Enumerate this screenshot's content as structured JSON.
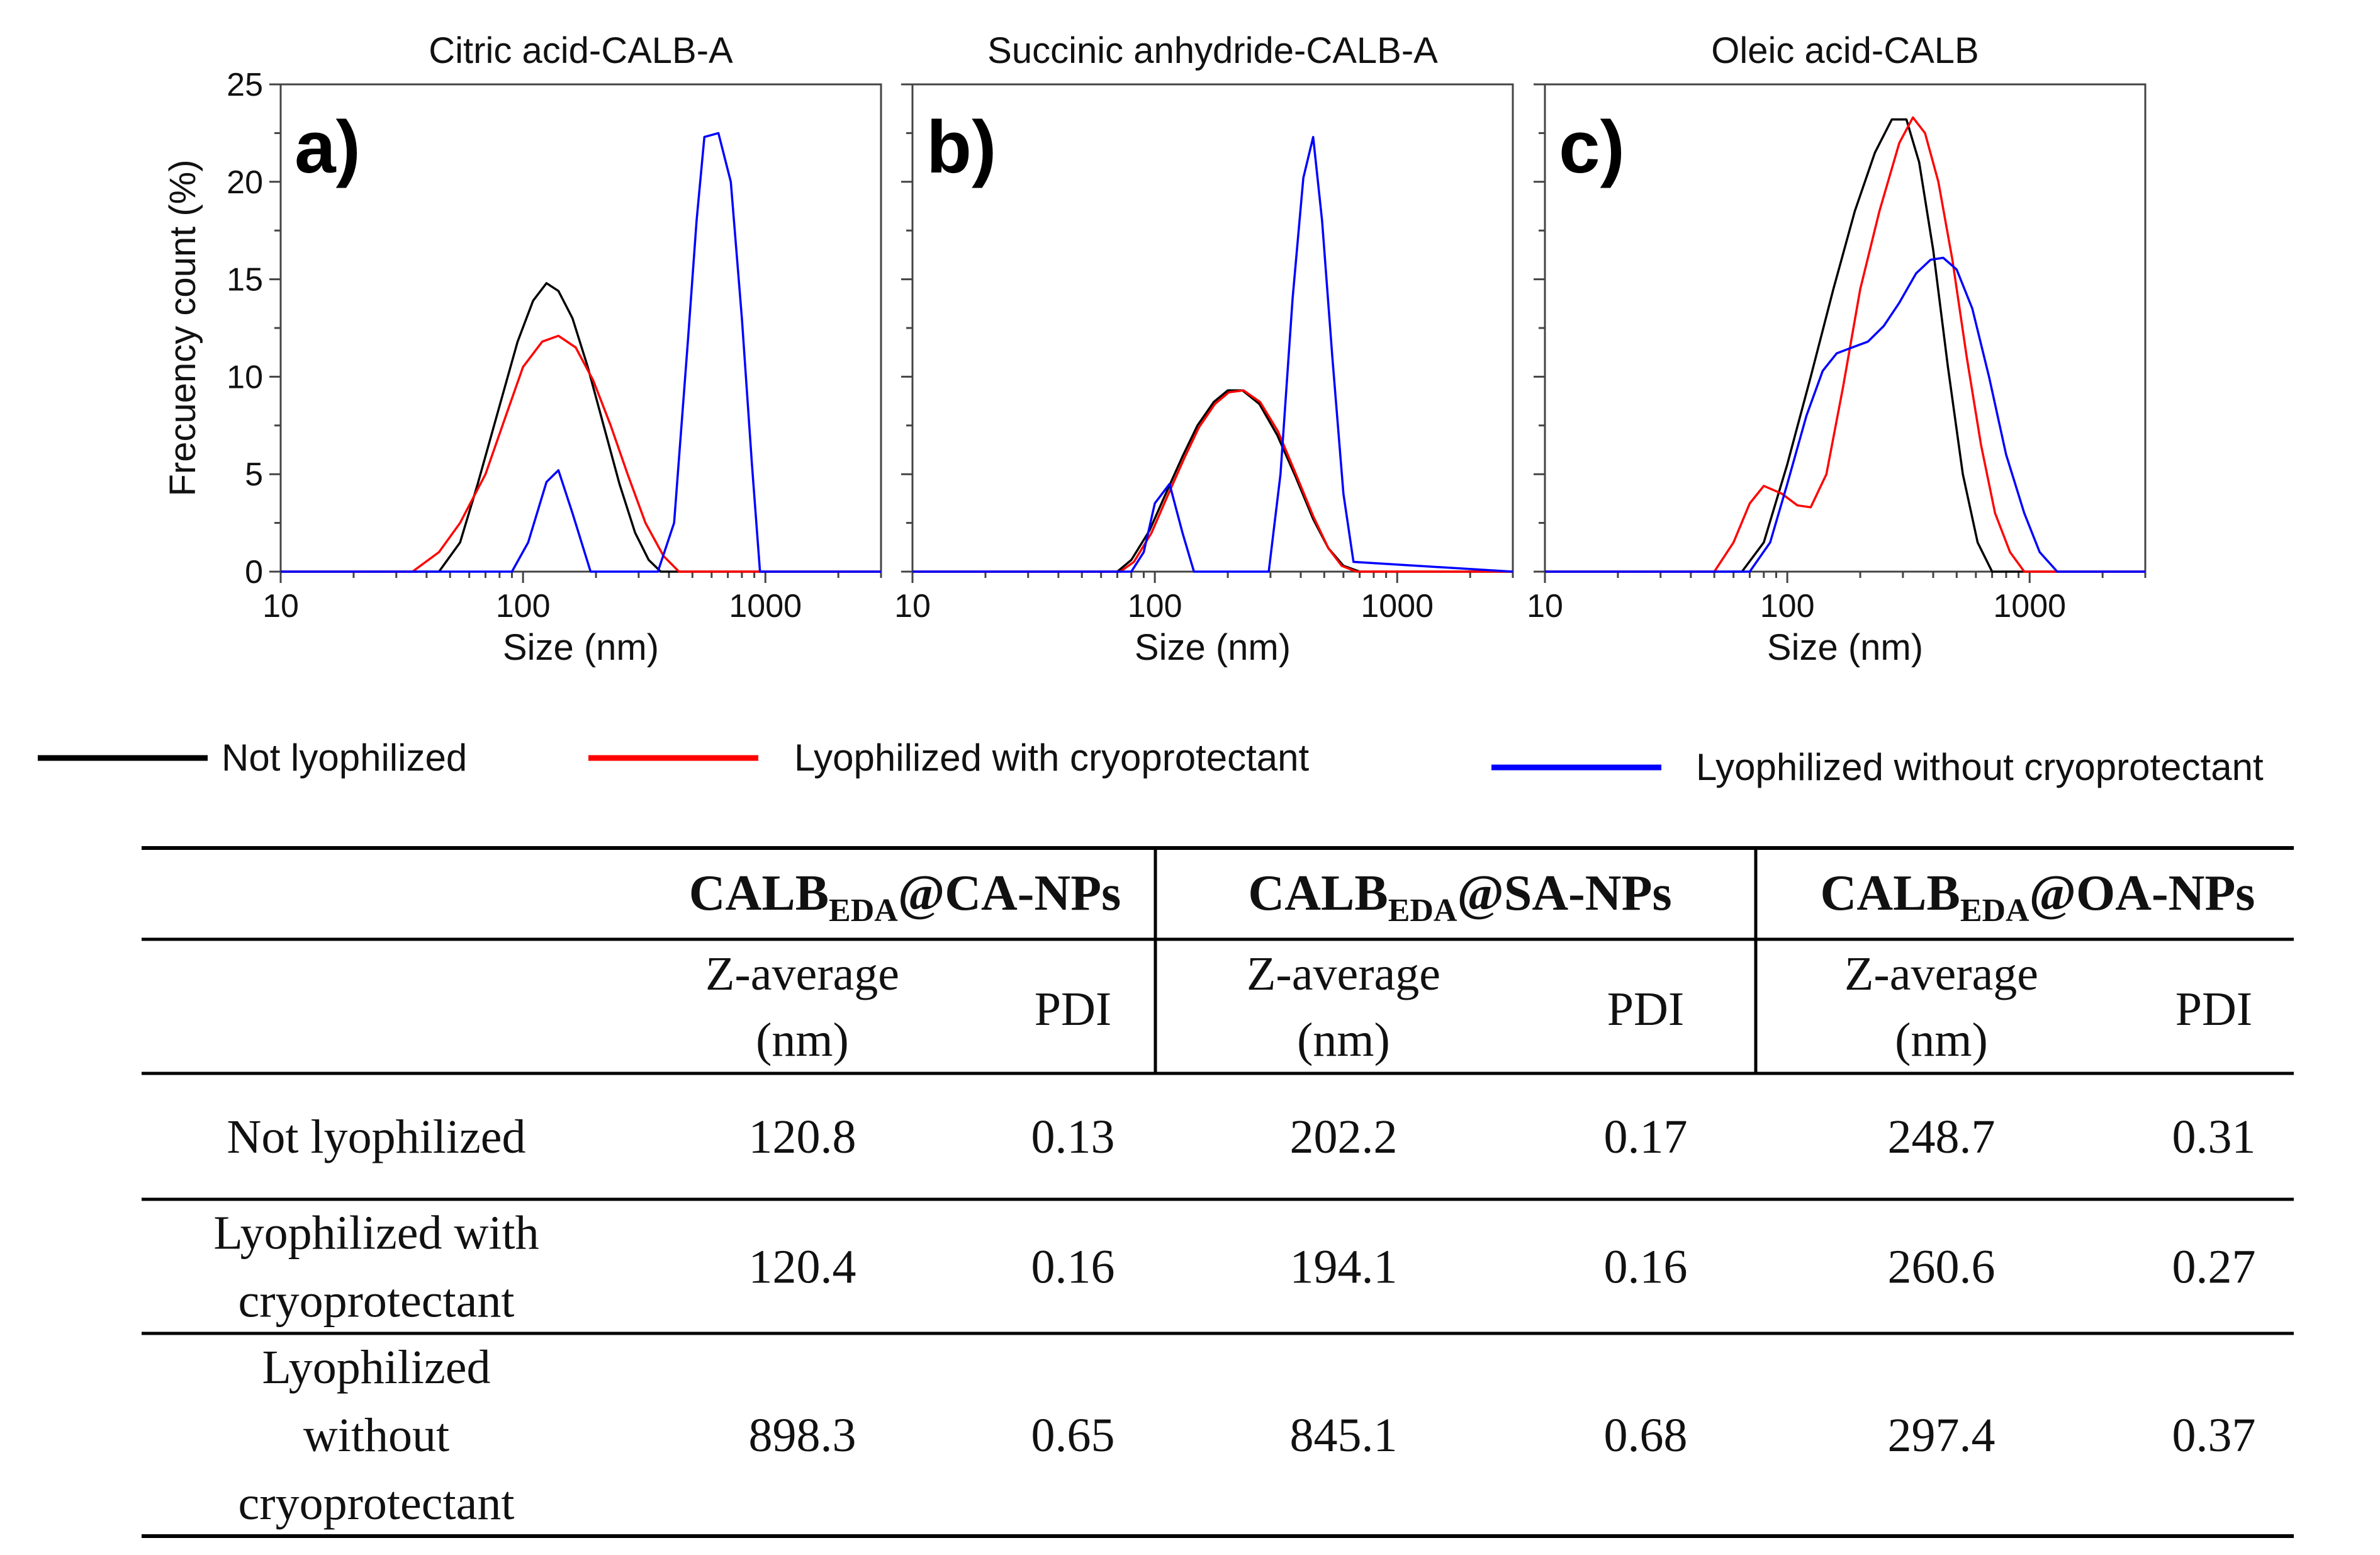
{
  "chart_data": [
    {
      "type": "line",
      "title": "Citric acid-CALB-A",
      "panel_label": "a)",
      "xlabel": "Size (nm)",
      "ylabel": "Frecuency count (%)",
      "xscale": "log",
      "xlim": [
        10,
        3000
      ],
      "ylim": [
        0,
        25
      ],
      "xticks": [
        10,
        100,
        1000
      ],
      "xtick_labels": [
        "10",
        "100",
        "1000"
      ],
      "yticks": [
        0,
        5,
        10,
        15,
        20,
        25
      ],
      "ytick_labels": [
        "0",
        "5",
        "10",
        "15",
        "20",
        "25"
      ],
      "grid": false,
      "series": [
        {
          "name": "Not lyophilized",
          "color": "#000000",
          "x": [
            10,
            45,
            55,
            65,
            80,
            95,
            110,
            125,
            140,
            160,
            185,
            215,
            250,
            290,
            330,
            370,
            3000
          ],
          "y": [
            0,
            0,
            1.5,
            4.5,
            8.5,
            11.8,
            13.9,
            14.8,
            14.4,
            13,
            10.5,
            7.5,
            4.5,
            2,
            0.6,
            0,
            0
          ]
        },
        {
          "name": "Lyophilized with cryoprotectant",
          "color": "#ff0000",
          "x": [
            10,
            35,
            45,
            55,
            70,
            85,
            100,
            120,
            140,
            165,
            195,
            230,
            270,
            320,
            380,
            440,
            3000
          ],
          "y": [
            0,
            0,
            1,
            2.5,
            5,
            8,
            10.5,
            11.8,
            12.1,
            11.5,
            9.8,
            7.5,
            5,
            2.5,
            0.8,
            0,
            0
          ]
        },
        {
          "name": "Lyophilized without cryoprotectant",
          "color": "#0000ff",
          "x": [
            10,
            90,
            105,
            125,
            140,
            160,
            190,
            360,
            420,
            480,
            520,
            560,
            640,
            720,
            800,
            880,
            950,
            3000
          ],
          "y": [
            0,
            0,
            1.5,
            4.6,
            5.2,
            3,
            0,
            0,
            2.5,
            12,
            18,
            22.3,
            22.5,
            20,
            13,
            5.5,
            0,
            0
          ]
        }
      ]
    },
    {
      "type": "line",
      "title": "Succinic anhydride-CALB-A",
      "panel_label": "b)",
      "xlabel": "Size (nm)",
      "ylabel": "",
      "xscale": "log",
      "xlim": [
        10,
        3000
      ],
      "ylim": [
        0,
        25
      ],
      "xticks": [
        10,
        100,
        1000
      ],
      "xtick_labels": [
        "10",
        "100",
        "1000"
      ],
      "grid": false,
      "series": [
        {
          "name": "Not lyophilized",
          "color": "#000000",
          "x": [
            10,
            70,
            80,
            95,
            110,
            130,
            150,
            175,
            200,
            230,
            270,
            320,
            380,
            450,
            520,
            600,
            700,
            3000
          ],
          "y": [
            0,
            0,
            0.6,
            2.1,
            3.9,
            5.9,
            7.5,
            8.7,
            9.3,
            9.3,
            8.6,
            7,
            4.9,
            2.7,
            1.2,
            0.3,
            0,
            0
          ]
        },
        {
          "name": "Lyophilized with cryoprotectant",
          "color": "#ff0000",
          "x": [
            10,
            72,
            82,
            97,
            112,
            132,
            152,
            177,
            202,
            232,
            272,
            322,
            382,
            452,
            520,
            590,
            680,
            3000
          ],
          "y": [
            0,
            0,
            0.5,
            2,
            3.8,
            5.8,
            7.4,
            8.6,
            9.2,
            9.3,
            8.7,
            7.2,
            5,
            2.8,
            1.2,
            0.3,
            0,
            0
          ]
        },
        {
          "name": "Lyophilized without cryoprotectant",
          "color": "#0000ff",
          "x": [
            10,
            80,
            90,
            100,
            115,
            130,
            145,
            295,
            330,
            370,
            410,
            450,
            490,
            540,
            600,
            660,
            3000
          ],
          "y": [
            0,
            0,
            1,
            3.5,
            4.5,
            2,
            0,
            0,
            5,
            14,
            20.2,
            22.3,
            18,
            11,
            4,
            0.5,
            0
          ]
        }
      ]
    },
    {
      "type": "line",
      "title": "Oleic acid-CALB",
      "panel_label": "c)",
      "xlabel": "Size (nm)",
      "ylabel": "",
      "xscale": "log",
      "xlim": [
        10,
        3000
      ],
      "ylim": [
        0,
        25
      ],
      "xticks": [
        10,
        100,
        1000
      ],
      "xtick_labels": [
        "10",
        "100",
        "1000"
      ],
      "grid": false,
      "series": [
        {
          "name": "Not lyophilized",
          "color": "#000000",
          "x": [
            10,
            65,
            80,
            100,
            125,
            155,
            190,
            230,
            270,
            310,
            350,
            400,
            460,
            530,
            610,
            700,
            3000
          ],
          "y": [
            0,
            0,
            1.5,
            5.5,
            10,
            14.5,
            18.5,
            21.5,
            23.2,
            23.2,
            21,
            16.5,
            10.5,
            5,
            1.5,
            0,
            0
          ]
        },
        {
          "name": "Lyophilized with cryoprotectant",
          "color": "#ff0000",
          "x": [
            10,
            50,
            60,
            70,
            80,
            95,
            110,
            125,
            145,
            170,
            200,
            240,
            290,
            330,
            370,
            420,
            480,
            550,
            630,
            720,
            830,
            950,
            3000
          ],
          "y": [
            0,
            0,
            1.5,
            3.5,
            4.4,
            4,
            3.4,
            3.3,
            5,
            9.5,
            14.5,
            18.5,
            22,
            23.3,
            22.5,
            20,
            16,
            11,
            6.5,
            3,
            1,
            0,
            0
          ]
        },
        {
          "name": "Lyophilized without cryoprotectant",
          "color": "#0000ff",
          "x": [
            10,
            70,
            85,
            100,
            120,
            140,
            160,
            185,
            215,
            250,
            290,
            340,
            390,
            440,
            500,
            580,
            680,
            800,
            950,
            1100,
            1300,
            3000
          ],
          "y": [
            0,
            0,
            1.5,
            4.5,
            8,
            10.3,
            11.2,
            11.5,
            11.8,
            12.6,
            13.8,
            15.3,
            16,
            16.1,
            15.5,
            13.5,
            10,
            6,
            3,
            1,
            0,
            0
          ]
        }
      ]
    }
  ],
  "legend": [
    {
      "label": "Not lyophilized",
      "color": "#000000"
    },
    {
      "label": "Lyophilized with cryoprotectant",
      "color": "#ff0000"
    },
    {
      "label": "Lyophilized without cryoprotectant",
      "color": "#0000ff"
    }
  ],
  "table": {
    "groups": [
      {
        "label": "CALB",
        "sub": "EDA",
        "suffix": "@CA-NPs"
      },
      {
        "label": "CALB",
        "sub": "EDA",
        "suffix": "@SA-NPs"
      },
      {
        "label": "CALB",
        "sub": "EDA",
        "suffix": "@OA-NPs"
      }
    ],
    "zavg_line1": "Z-average",
    "zavg_line2": "(nm)",
    "pdi_label": "PDI",
    "rows": [
      {
        "label_lines": [
          "Not lyophilized"
        ],
        "values": [
          "120.8",
          "0.13",
          "202.2",
          "0.17",
          "248.7",
          "0.31"
        ]
      },
      {
        "label_lines": [
          "Lyophilized with",
          "cryoprotectant"
        ],
        "values": [
          "120.4",
          "0.16",
          "194.1",
          "0.16",
          "260.6",
          "0.27"
        ]
      },
      {
        "label_lines": [
          "Lyophilized",
          "without",
          "cryoprotectant"
        ],
        "values": [
          "898.3",
          "0.65",
          "845.1",
          "0.68",
          "297.4",
          "0.37"
        ]
      }
    ]
  }
}
